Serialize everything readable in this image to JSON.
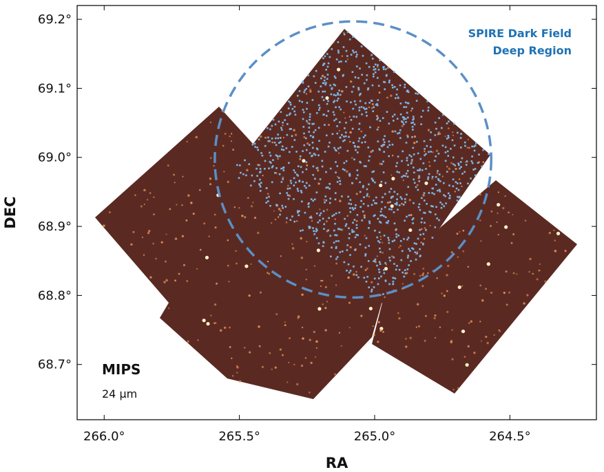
{
  "chart_data": {
    "type": "scatter",
    "xlabel": "RA",
    "ylabel": "DEC",
    "xlim": [
      266.1,
      264.18
    ],
    "ylim": [
      68.62,
      69.22
    ],
    "x_ticks": [
      266.0,
      265.5,
      265.0,
      264.5
    ],
    "x_tick_labels": [
      "266.0°",
      "265.5°",
      "265.0°",
      "264.5°"
    ],
    "y_ticks": [
      69.2,
      69.1,
      69.0,
      68.9,
      68.8,
      68.7
    ],
    "y_tick_labels": [
      "69.2°",
      "69.1°",
      "69.0°",
      "68.9°",
      "68.8°",
      "68.7°"
    ],
    "region": {
      "label_line1": "SPIRE Dark Field",
      "label_line2": "Deep Region",
      "center_ra": 265.08,
      "center_dec": 68.997,
      "radius_deg": 0.2,
      "color": "#5b8fc7"
    },
    "image_label": {
      "instrument": "MIPS",
      "wavelength": "24 µm"
    },
    "source_color": "#7fb5e6",
    "image_color": "#5a2a22",
    "label_color": "#1f72b4"
  }
}
